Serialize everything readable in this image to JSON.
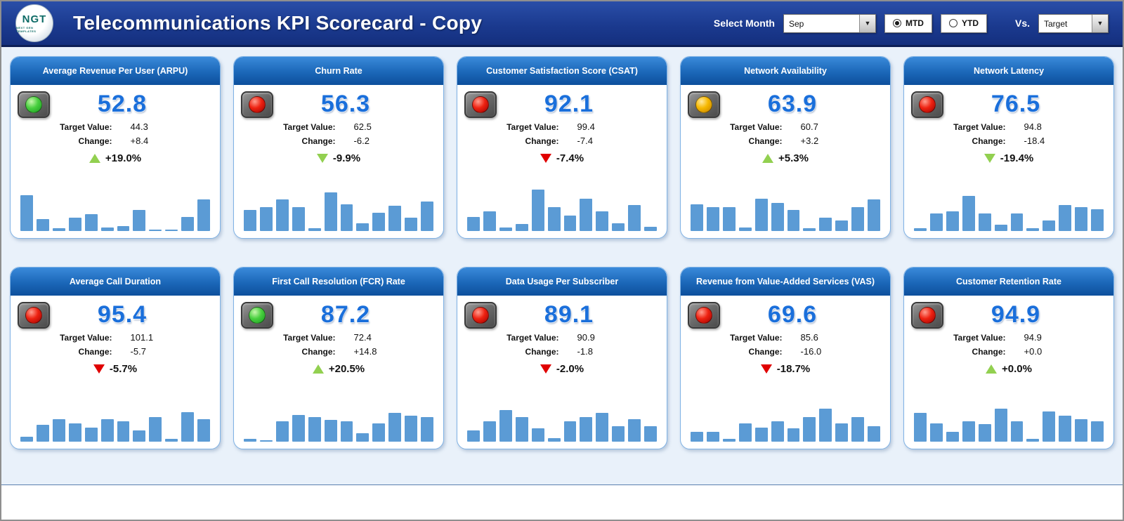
{
  "header": {
    "title": "Telecommunications KPI Scorecard - Copy",
    "logo": {
      "text": "NGT",
      "subtext": "NEXT GEN TEMPLATES"
    },
    "select_month_label": "Select Month",
    "month_value": "Sep",
    "period_options": [
      {
        "label": "MTD",
        "selected": true
      },
      {
        "label": "YTD",
        "selected": false
      }
    ],
    "vs_label": "Vs.",
    "vs_value": "Target"
  },
  "labels": {
    "target": "Target Value:",
    "change": "Change:"
  },
  "colors": {
    "topbar_blue": "#1b3a8f",
    "card_header_blue": "#1b67b8",
    "value_blue": "#1a6fdb",
    "spark_blue": "#5b9bd5",
    "arrow_green": "#92d050",
    "arrow_red": "#e00000"
  },
  "cards": [
    {
      "title": "Average Revenue Per User (ARPU)",
      "indicator": "green",
      "value": "52.8",
      "target": "44.3",
      "change": "+8.4",
      "pct": "+19.0%",
      "arrow": "up",
      "arrow_color": "green",
      "spark": [
        82,
        28,
        6,
        30,
        38,
        8,
        12,
        48,
        4,
        4,
        32,
        72
      ]
    },
    {
      "title": "Churn Rate",
      "indicator": "red",
      "value": "56.3",
      "target": "62.5",
      "change": "-6.2",
      "pct": "-9.9%",
      "arrow": "down",
      "arrow_color": "green",
      "spark": [
        48,
        55,
        72,
        55,
        6,
        88,
        62,
        18,
        42,
        58,
        30,
        68
      ]
    },
    {
      "title": "Customer Satisfaction Score (CSAT)",
      "indicator": "red",
      "value": "92.1",
      "target": "99.4",
      "change": "-7.4",
      "pct": "-7.4%",
      "arrow": "down",
      "arrow_color": "red",
      "spark": [
        32,
        45,
        8,
        16,
        95,
        55,
        35,
        75,
        45,
        18,
        60,
        10
      ]
    },
    {
      "title": "Network Availability",
      "indicator": "yellow",
      "value": "63.9",
      "target": "60.7",
      "change": "+3.2",
      "pct": "+5.3%",
      "arrow": "up",
      "arrow_color": "green",
      "spark": [
        62,
        55,
        55,
        8,
        75,
        65,
        48,
        6,
        30,
        25,
        55,
        72
      ]
    },
    {
      "title": "Network Latency",
      "indicator": "red",
      "value": "76.5",
      "target": "94.8",
      "change": "-18.4",
      "pct": "-19.4%",
      "arrow": "down",
      "arrow_color": "green",
      "spark": [
        6,
        40,
        45,
        80,
        40,
        15,
        40,
        6,
        25,
        60,
        55,
        50
      ]
    },
    {
      "title": "Average Call Duration",
      "indicator": "red",
      "value": "95.4",
      "target": "101.1",
      "change": "-5.7",
      "pct": "-5.7%",
      "arrow": "down",
      "arrow_color": "red",
      "spark": [
        12,
        38,
        52,
        42,
        32,
        52,
        46,
        26,
        56,
        6,
        68,
        52
      ]
    },
    {
      "title": "First Call Resolution (FCR) Rate",
      "indicator": "green",
      "value": "87.2",
      "target": "72.4",
      "change": "+14.8",
      "pct": "+20.5%",
      "arrow": "up",
      "arrow_color": "green",
      "spark": [
        6,
        4,
        46,
        62,
        56,
        50,
        46,
        20,
        42,
        66,
        60,
        56
      ]
    },
    {
      "title": "Data Usage Per Subscriber",
      "indicator": "red",
      "value": "89.1",
      "target": "90.9",
      "change": "-1.8",
      "pct": "-2.0%",
      "arrow": "down",
      "arrow_color": "red",
      "spark": [
        26,
        46,
        72,
        56,
        30,
        8,
        46,
        56,
        66,
        36,
        52,
        36
      ]
    },
    {
      "title": "Revenue from Value-Added Services (VAS)",
      "indicator": "red",
      "value": "69.6",
      "target": "85.6",
      "change": "-16.0",
      "pct": "-18.7%",
      "arrow": "down",
      "arrow_color": "red",
      "spark": [
        22,
        22,
        6,
        42,
        32,
        46,
        30,
        56,
        76,
        42,
        56,
        36
      ]
    },
    {
      "title": "Customer Retention Rate",
      "indicator": "red",
      "value": "94.9",
      "target": "94.9",
      "change": "+0.0",
      "pct": "+0.0%",
      "arrow": "up",
      "arrow_color": "green",
      "spark": [
        66,
        42,
        22,
        46,
        40,
        76,
        46,
        6,
        70,
        60,
        52,
        46
      ]
    }
  ]
}
